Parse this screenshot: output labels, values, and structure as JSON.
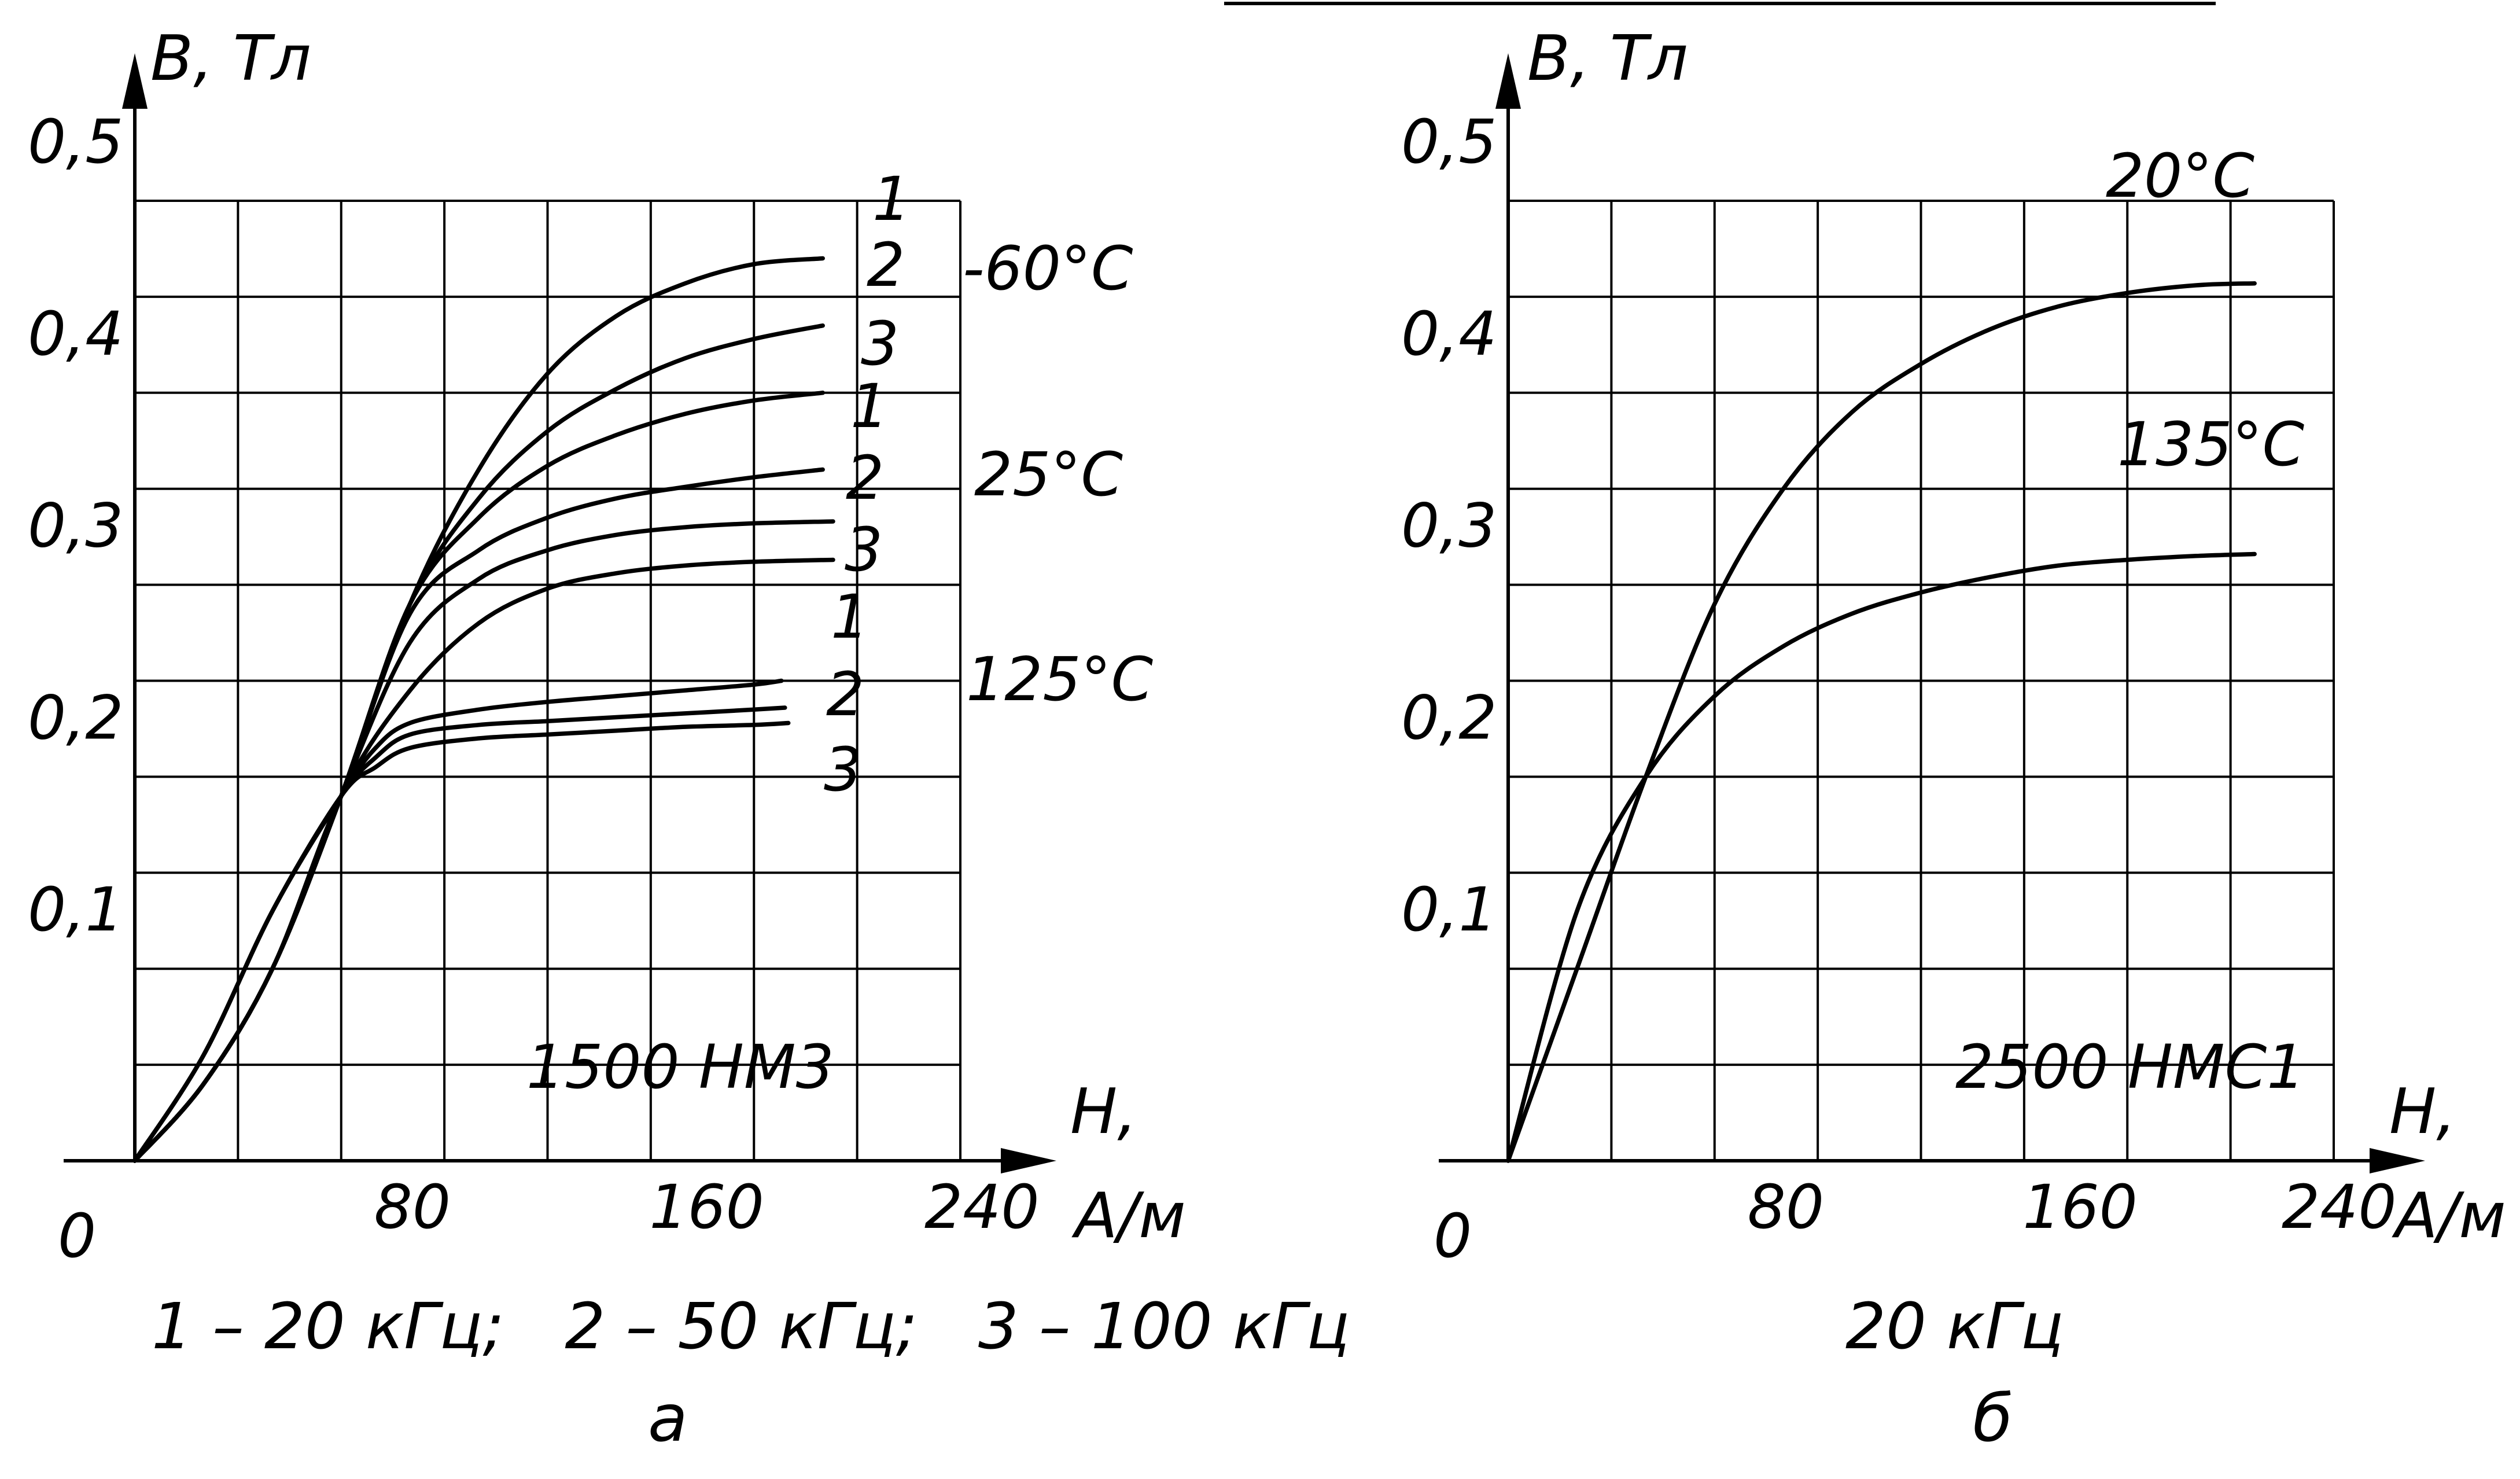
{
  "chart_data": [
    {
      "type": "line",
      "panel_label": "а",
      "ylabel": "B, Тл",
      "xlabel_h": "H,",
      "xlabel_unit": "А/м",
      "origin_label": "0",
      "material_label": "1500 НМ3",
      "caption": "1 – 20 кГц;   2 – 50 кГц;   3 – 100 кГц",
      "xlim": [
        0,
        240
      ],
      "ylim": [
        0,
        0.5
      ],
      "x_ticks": [
        80,
        160,
        240
      ],
      "x_tick_labels": [
        "80",
        "160",
        "240"
      ],
      "y_ticks": [
        0.1,
        0.2,
        0.3,
        0.4,
        0.5
      ],
      "y_tick_labels": [
        "0,1",
        "0,2",
        "0,3",
        "0,4",
        "0,5"
      ],
      "grid": true,
      "groups": [
        {
          "name": "-60°С",
          "series": [
            {
              "name": "1",
              "x": [
                0,
                20,
                40,
                60,
                80,
                100,
                120,
                140,
                160,
                180,
                200
              ],
              "y": [
                0,
                0.04,
                0.1,
                0.19,
                0.29,
                0.36,
                0.41,
                0.44,
                0.457,
                0.467,
                0.47
              ]
            },
            {
              "name": "2",
              "x": [
                0,
                20,
                40,
                60,
                80,
                100,
                120,
                140,
                160,
                180,
                200
              ],
              "y": [
                0,
                0.04,
                0.1,
                0.19,
                0.29,
                0.345,
                0.38,
                0.402,
                0.418,
                0.428,
                0.435
              ]
            },
            {
              "name": "3",
              "x": [
                0,
                20,
                40,
                60,
                80,
                100,
                120,
                140,
                160,
                180,
                200
              ],
              "y": [
                0,
                0.04,
                0.1,
                0.19,
                0.29,
                0.335,
                0.362,
                0.378,
                0.389,
                0.396,
                0.4
              ]
            }
          ]
        },
        {
          "name": "25°С",
          "series": [
            {
              "name": "1",
              "x": [
                0,
                20,
                40,
                60,
                80,
                100,
                120,
                140,
                160,
                180,
                200
              ],
              "y": [
                0,
                0.04,
                0.1,
                0.19,
                0.285,
                0.318,
                0.335,
                0.345,
                0.351,
                0.356,
                0.36
              ]
            },
            {
              "name": "2",
              "x": [
                0,
                20,
                40,
                60,
                80,
                100,
                120,
                140,
                160,
                180,
                203
              ],
              "y": [
                0,
                0.04,
                0.1,
                0.19,
                0.27,
                0.303,
                0.318,
                0.326,
                0.33,
                0.332,
                0.333
              ]
            },
            {
              "name": "3",
              "x": [
                0,
                20,
                40,
                60,
                80,
                100,
                120,
                140,
                160,
                180,
                203
              ],
              "y": [
                0,
                0.04,
                0.1,
                0.19,
                0.245,
                0.28,
                0.298,
                0.306,
                0.31,
                0.312,
                0.313
              ]
            }
          ]
        },
        {
          "name": "125°С",
          "series": [
            {
              "name": "1",
              "x": [
                0,
                20,
                40,
                60,
                70,
                80,
                100,
                120,
                140,
                160,
                180,
                188
              ],
              "y": [
                0,
                0.055,
                0.13,
                0.19,
                0.215,
                0.228,
                0.235,
                0.239,
                0.242,
                0.245,
                0.248,
                0.25
              ]
            },
            {
              "name": "2",
              "x": [
                0,
                20,
                40,
                60,
                70,
                80,
                100,
                120,
                140,
                160,
                180,
                189
              ],
              "y": [
                0,
                0.055,
                0.13,
                0.19,
                0.21,
                0.222,
                0.227,
                0.229,
                0.231,
                0.233,
                0.235,
                0.236
              ]
            },
            {
              "name": "3",
              "x": [
                0,
                20,
                40,
                60,
                70,
                80,
                100,
                120,
                140,
                160,
                180,
                190
              ],
              "y": [
                0,
                0.055,
                0.13,
                0.19,
                0.205,
                0.215,
                0.22,
                0.222,
                0.224,
                0.226,
                0.227,
                0.228
              ]
            }
          ]
        }
      ]
    },
    {
      "type": "line",
      "panel_label": "б",
      "ylabel": "B, Тл",
      "xlabel_h": "H,",
      "xlabel_unit": "А/м",
      "x_tick_last_attached": "240",
      "origin_label": "0",
      "material_label": "2500 НМС1",
      "caption": "20 кГц",
      "xlim": [
        0,
        240
      ],
      "ylim": [
        0,
        0.5
      ],
      "x_ticks": [
        80,
        160
      ],
      "x_tick_labels": [
        "80",
        "160"
      ],
      "y_ticks": [
        0.1,
        0.2,
        0.3,
        0.4,
        0.5
      ],
      "y_tick_labels": [
        "0,1",
        "0,2",
        "0,3",
        "0,4",
        "0,5"
      ],
      "grid": true,
      "series": [
        {
          "name": "20°С",
          "x": [
            0,
            20,
            40,
            60,
            80,
            100,
            120,
            140,
            160,
            180,
            200,
            217
          ],
          "y": [
            0,
            0.1,
            0.2,
            0.29,
            0.35,
            0.39,
            0.415,
            0.433,
            0.445,
            0.452,
            0.456,
            0.457
          ]
        },
        {
          "name": "135°С",
          "x": [
            0,
            20,
            40,
            60,
            80,
            100,
            120,
            140,
            160,
            180,
            200,
            217
          ],
          "y": [
            0,
            0.13,
            0.2,
            0.242,
            0.268,
            0.285,
            0.296,
            0.304,
            0.31,
            0.313,
            0.315,
            0.316
          ]
        }
      ]
    }
  ]
}
